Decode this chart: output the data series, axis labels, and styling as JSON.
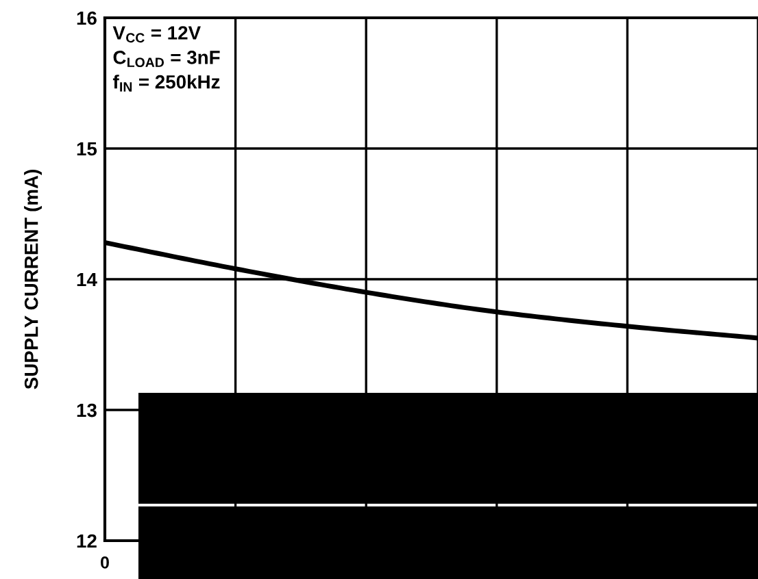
{
  "chart_data": {
    "type": "line",
    "ylabel": "SUPPLY CURRENT (mA)",
    "annotations": [
      "V$_{CC}$ = 12V",
      "C$_{LOAD}$ = 3nF",
      "f$_{IN}$ = 250kHz",
      "0"
    ],
    "categories": [
      null,
      null,
      null,
      null,
      null,
      null
    ],
    "series": [
      {
        "color": "#000000",
        "values": [
          14.28,
          14.08,
          13.9,
          13.75,
          13.64,
          13.55
        ]
      }
    ],
    "ylim": [
      12,
      16
    ],
    "yticks": [
      12,
      13,
      14,
      15,
      16
    ],
    "grid": true,
    "marker": "none",
    "line_style": "solid"
  }
}
